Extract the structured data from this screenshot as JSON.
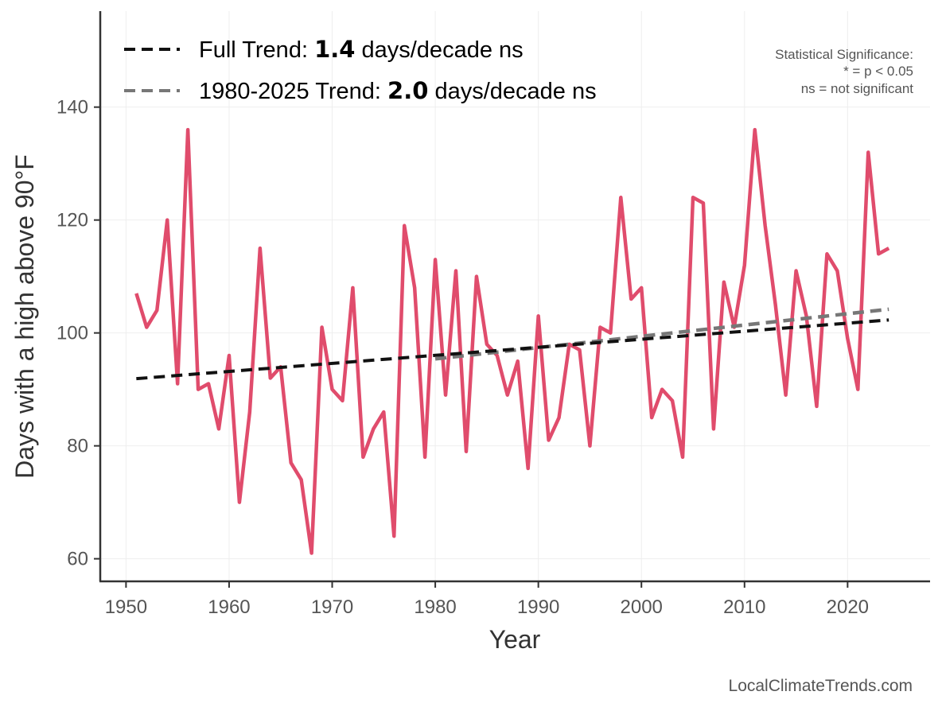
{
  "chart_data": {
    "type": "line",
    "xlabel": "Year",
    "ylabel": "Days with a high above 90°F",
    "xlim": [
      1947.5,
      2028
    ],
    "ylim": [
      56,
      157
    ],
    "x_ticks": [
      1950,
      1960,
      1970,
      1980,
      1990,
      2000,
      2010,
      2020
    ],
    "y_ticks": [
      60,
      80,
      100,
      120,
      140
    ],
    "grid": true,
    "legend_position": "top-left",
    "colors": {
      "observed": "#e04c6c",
      "full_trend": "#111111",
      "recent_trend": "#777777",
      "axis": "#333333",
      "grid": "#eeeeee"
    },
    "series": [
      {
        "style": "solid",
        "x": [
          1951,
          1952,
          1953,
          1954,
          1955,
          1956,
          1957,
          1958,
          1959,
          1960,
          1961,
          1962,
          1963,
          1964,
          1965,
          1966,
          1967,
          1968,
          1969,
          1970,
          1971,
          1972,
          1973,
          1974,
          1975,
          1976,
          1977,
          1978,
          1979,
          1980,
          1981,
          1982,
          1983,
          1984,
          1985,
          1986,
          1987,
          1988,
          1989,
          1990,
          1991,
          1992,
          1993,
          1994,
          1995,
          1996,
          1997,
          1998,
          1999,
          2000,
          2001,
          2002,
          2003,
          2004,
          2005,
          2006,
          2007,
          2008,
          2009,
          2010,
          2011,
          2012,
          2013,
          2014,
          2015,
          2016,
          2017,
          2018,
          2019,
          2020,
          2021,
          2022,
          2023,
          2024
        ],
        "values": [
          107,
          101,
          104,
          120,
          91,
          136,
          90,
          91,
          83,
          96,
          70,
          86,
          115,
          92,
          94,
          77,
          74,
          61,
          101,
          90,
          88,
          108,
          78,
          83,
          86,
          64,
          119,
          108,
          78,
          113,
          89,
          111,
          79,
          110,
          98,
          96,
          89,
          95,
          76,
          103,
          81,
          85,
          98,
          97,
          80,
          101,
          100,
          124,
          106,
          108,
          85,
          90,
          88,
          78,
          124,
          123,
          83,
          109,
          101,
          112,
          136,
          119,
          105,
          89,
          111,
          103,
          87,
          114,
          111,
          99,
          90,
          132,
          114,
          115
        ]
      },
      {
        "name": "Full Trend",
        "style": "dashed",
        "x": [
          1951,
          2024
        ],
        "values": [
          91.9,
          102.3
        ]
      },
      {
        "name": "1980-2025 Trend",
        "style": "dashed",
        "x": [
          1980,
          2024
        ],
        "values": [
          95.4,
          104.2
        ]
      }
    ],
    "legend": [
      {
        "prefix": "Full Trend: ",
        "value": "1.4",
        "suffix": " days/decade ns"
      },
      {
        "prefix": "1980-2025 Trend: ",
        "value": "2.0",
        "suffix": " days/decade ns"
      }
    ],
    "annotation": [
      "Statistical Significance:",
      "* = p < 0.05",
      "ns = not significant"
    ],
    "caption": "LocalClimateTrends.com"
  }
}
